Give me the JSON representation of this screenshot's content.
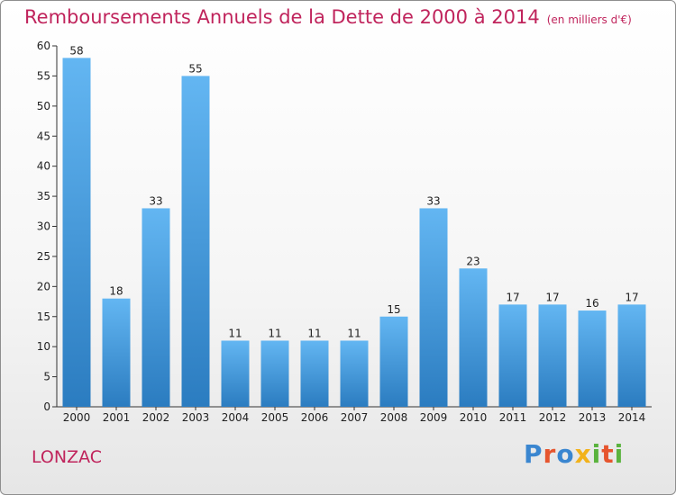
{
  "header": {
    "title": "Remboursements Annuels de la Dette de 2000 à 2014",
    "unit": "(en milliers d'€)"
  },
  "footer": {
    "commune": "LONZAC",
    "brand": "Proxiti"
  },
  "colors": {
    "title": "#c0245c",
    "bar_top": "#63b6f2",
    "bar_bottom": "#2b7cc0",
    "axis": "#333333"
  },
  "chart_data": {
    "type": "bar",
    "title": "Remboursements Annuels de la Dette de 2000 à 2014",
    "subtitle": "(en milliers d'€)",
    "xlabel": "",
    "ylabel": "",
    "categories": [
      "2000",
      "2001",
      "2002",
      "2003",
      "2004",
      "2005",
      "2006",
      "2007",
      "2008",
      "2009",
      "2010",
      "2011",
      "2012",
      "2013",
      "2014"
    ],
    "values": [
      58,
      18,
      33,
      55,
      11,
      11,
      11,
      11,
      15,
      33,
      23,
      17,
      17,
      16,
      17
    ],
    "ylim": [
      0,
      60
    ],
    "yticks": [
      0,
      5,
      10,
      15,
      20,
      25,
      30,
      35,
      40,
      45,
      50,
      55,
      60
    ],
    "grid": false,
    "legend": "none",
    "data_labels": true
  }
}
